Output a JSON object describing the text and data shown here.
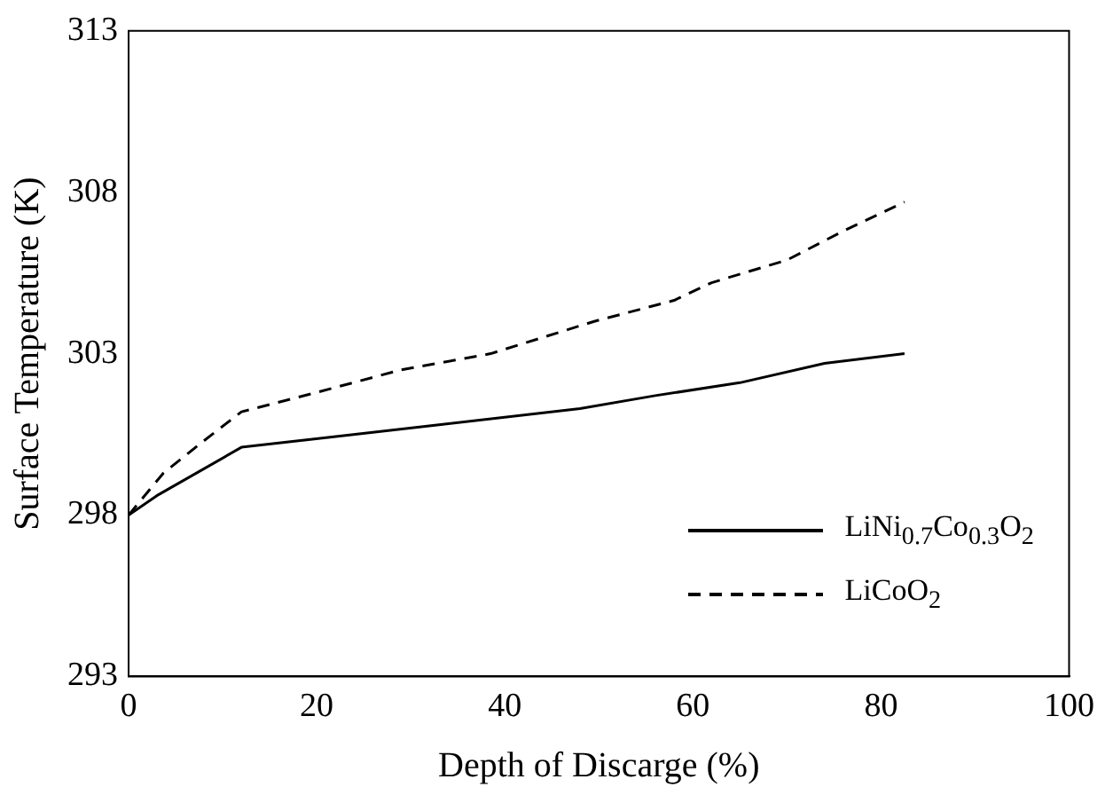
{
  "chart_data": {
    "type": "line",
    "xlabel": "Depth of Discarge (%)",
    "ylabel": "Surface Temperature (K)",
    "xlim": [
      0,
      100
    ],
    "xticks": [
      0,
      20,
      40,
      60,
      80,
      100
    ],
    "ylim": [
      293,
      313
    ],
    "yticks": [
      293,
      298,
      303,
      308,
      313
    ],
    "grid": false,
    "legend": "bottom right",
    "marker": "none",
    "series": [
      {
        "name": "LiNi$_{0.7}$Co$_{0.3}$O$_{2}$",
        "color": "#000000",
        "line_style": "solid",
        "x": [
          0,
          3,
          12,
          21,
          33,
          48,
          56,
          65,
          74,
          82.5
        ],
        "values": [
          298.0,
          298.6,
          300.1,
          300.4,
          300.8,
          301.3,
          301.7,
          302.1,
          302.7,
          303.0
        ]
      },
      {
        "name": "LiCoO$_{2}$",
        "color": "#000000",
        "line_style": "dashed",
        "x": [
          0,
          3.7,
          8,
          12,
          20,
          29,
          38.5,
          49.5,
          58,
          62,
          70,
          76,
          82.5
        ],
        "values": [
          298.0,
          299.3,
          300.3,
          301.2,
          301.8,
          302.5,
          303.0,
          304.0,
          304.65,
          305.2,
          305.9,
          306.8,
          307.7
        ]
      }
    ]
  }
}
